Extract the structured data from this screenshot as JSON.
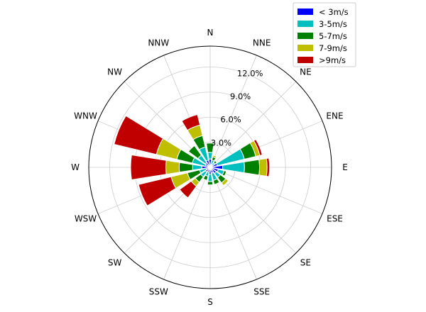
{
  "chart_data": {
    "type": "windrose",
    "directions": [
      "N",
      "NNE",
      "NE",
      "ENE",
      "E",
      "ESE",
      "SE",
      "SSE",
      "S",
      "SSW",
      "SW",
      "WSW",
      "W",
      "WNW",
      "NW",
      "NNW"
    ],
    "r_ticks": [
      "3.0%",
      "6.0%",
      "9.0%",
      "12.0%"
    ],
    "r_tick_values": [
      3,
      6,
      9,
      12
    ],
    "rmax": 14.5,
    "series": [
      {
        "name": "< 3m/s",
        "color": "#0000ff",
        "values": [
          1.0,
          0.4,
          0.3,
          0.9,
          1.5,
          1.0,
          0.9,
          0.7,
          0.8,
          0.6,
          0.7,
          0.5,
          1.0,
          0.6,
          0.7,
          0.9
        ]
      },
      {
        "name": "3-5m/s",
        "color": "#00bfbf",
        "values": [
          0.8,
          0.5,
          0.4,
          3.3,
          2.6,
          0.7,
          0.6,
          0.9,
          0.9,
          0.5,
          0.7,
          0.8,
          1.1,
          1.6,
          1.1,
          1.6
        ]
      },
      {
        "name": "5-7m/s",
        "color": "#008000",
        "values": [
          1.1,
          0.4,
          0.3,
          1.4,
          1.8,
          0.3,
          0.8,
          0.5,
          0.4,
          0.5,
          0.8,
          1.5,
          1.6,
          1.9,
          1.4,
          1.4
        ]
      },
      {
        "name": "7-9m/s",
        "color": "#bfbf00",
        "values": [
          0.0,
          0.2,
          0.1,
          0.5,
          0.9,
          0.1,
          0.4,
          0.0,
          0.0,
          0.0,
          0.6,
          2.0,
          1.6,
          2.5,
          0.0,
          1.3
        ]
      },
      {
        "name": ">9m/s",
        "color": "#c00000",
        "values": [
          0.0,
          0.0,
          0.0,
          0.3,
          0.3,
          0.0,
          0.0,
          0.0,
          0.0,
          0.0,
          1.7,
          4.0,
          4.2,
          5.2,
          0.0,
          1.3
        ]
      }
    ],
    "legend_position": "top-right",
    "grid": true
  }
}
